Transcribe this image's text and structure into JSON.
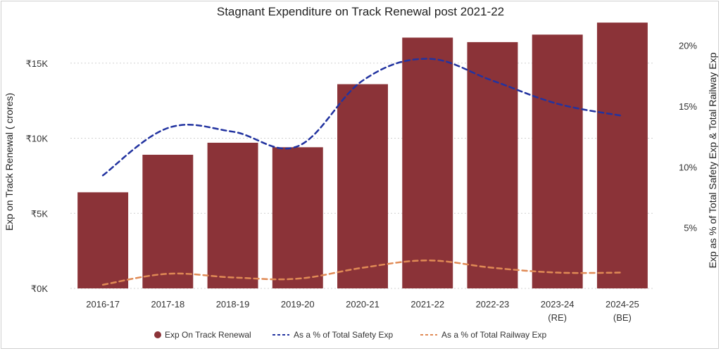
{
  "chart_data": {
    "type": "bar",
    "title": "Stagnant Expenditure on Track Renewal post 2021-22",
    "categories": [
      [
        "2016-17"
      ],
      [
        "2017-18"
      ],
      [
        "2018-19"
      ],
      [
        "2019-20"
      ],
      [
        "2020-21"
      ],
      [
        "2021-22"
      ],
      [
        "2022-23"
      ],
      [
        "2023-24",
        "(RE)"
      ],
      [
        "2024-25",
        "(BE)"
      ]
    ],
    "ylabel": "Exp on Track Renewal ( crores)",
    "y2label": "Exp as % of Total Safety Exp & Total Railway Exp",
    "ylim": [
      0,
      17800
    ],
    "y2lim": [
      0,
      22
    ],
    "yticks": [
      {
        "value": 0,
        "label": "₹0K"
      },
      {
        "value": 5000,
        "label": "₹5K"
      },
      {
        "value": 10000,
        "label": "₹10K"
      },
      {
        "value": 15000,
        "label": "₹15K"
      }
    ],
    "y2ticks": [
      {
        "value": 5,
        "label": "5%"
      },
      {
        "value": 10,
        "label": "10%"
      },
      {
        "value": 15,
        "label": "15%"
      },
      {
        "value": 20,
        "label": "20%"
      }
    ],
    "series": [
      {
        "name": "Exp On Track Renewal",
        "kind": "bar",
        "axis": "left",
        "color": "#8b3338",
        "values": [
          6400,
          8900,
          9700,
          9400,
          13600,
          16700,
          16400,
          16900,
          17700
        ]
      },
      {
        "name": "As a % of Total Safety Exp",
        "kind": "line",
        "axis": "right",
        "color": "#2233a0",
        "dash": "dashed",
        "values": [
          9.3,
          13.2,
          12.9,
          11.7,
          17.1,
          18.9,
          17.1,
          15.2,
          14.2
        ]
      },
      {
        "name": "As a % of Total Railway Exp",
        "kind": "line",
        "axis": "right",
        "color": "#e08a55",
        "dash": "dashed",
        "values": [
          0.3,
          1.2,
          0.9,
          0.8,
          1.7,
          2.3,
          1.7,
          1.3,
          1.3
        ]
      }
    ],
    "legend": "bottom-center",
    "grid": true
  }
}
